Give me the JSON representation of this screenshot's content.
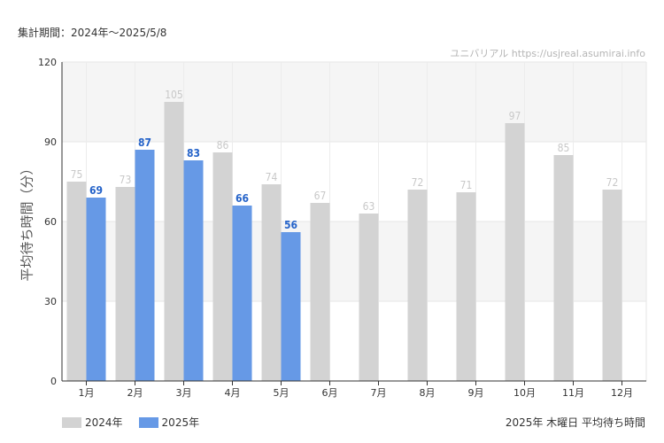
{
  "header": {
    "period": "集計期間：2024年～2025/5/8",
    "source": "ユニバリアル  https://usjreal.asumirai.info"
  },
  "chart_data": {
    "type": "bar",
    "ylabel": "平均待ち時間（分）",
    "ylim": [
      0,
      120
    ],
    "yticks": [
      0,
      30,
      60,
      90,
      120
    ],
    "categories": [
      "1月",
      "2月",
      "3月",
      "4月",
      "5月",
      "6月",
      "7月",
      "8月",
      "9月",
      "10月",
      "11月",
      "12月"
    ],
    "series": [
      {
        "name": "2024年",
        "color": "#d3d3d3",
        "label_color": "#c8c8c8",
        "values": [
          75,
          73,
          105,
          86,
          74,
          67,
          63,
          72,
          71,
          97,
          85,
          72
        ]
      },
      {
        "name": "2025年",
        "color": "#6699e6",
        "label_color": "#2563c9",
        "values": [
          69,
          87,
          83,
          66,
          56,
          null,
          null,
          null,
          null,
          null,
          null,
          null
        ]
      }
    ],
    "grid": true,
    "legend": "bottom-left",
    "caption": "2025年 木曜日 平均待ち時間"
  }
}
